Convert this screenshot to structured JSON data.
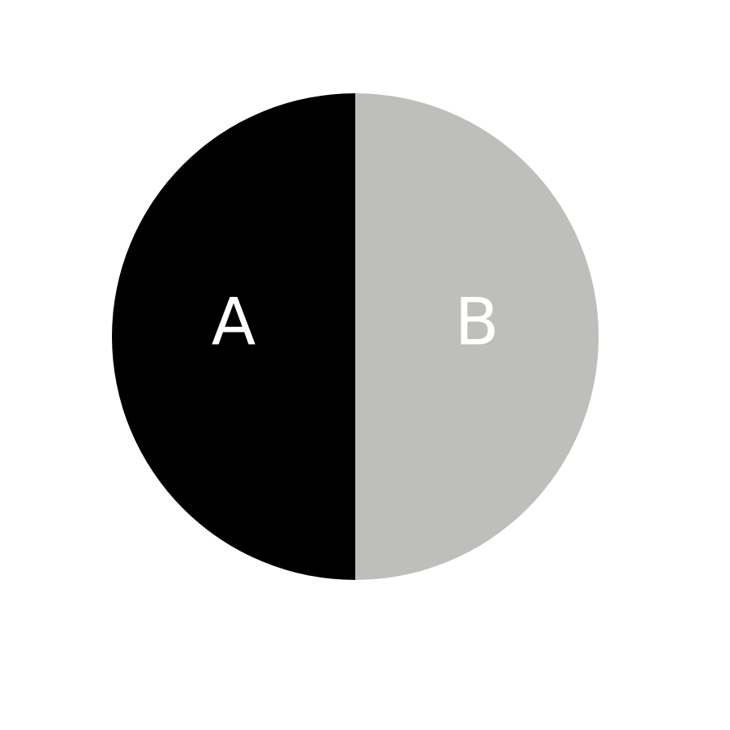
{
  "chart_data": {
    "type": "pie",
    "title": "",
    "categories": [
      "A",
      "B"
    ],
    "values": [
      50,
      50
    ],
    "colors": [
      "#000000",
      "#bebfba"
    ],
    "label_color": "#ffffff",
    "start": "top",
    "direction": "counterclockwise",
    "legend": "none"
  }
}
